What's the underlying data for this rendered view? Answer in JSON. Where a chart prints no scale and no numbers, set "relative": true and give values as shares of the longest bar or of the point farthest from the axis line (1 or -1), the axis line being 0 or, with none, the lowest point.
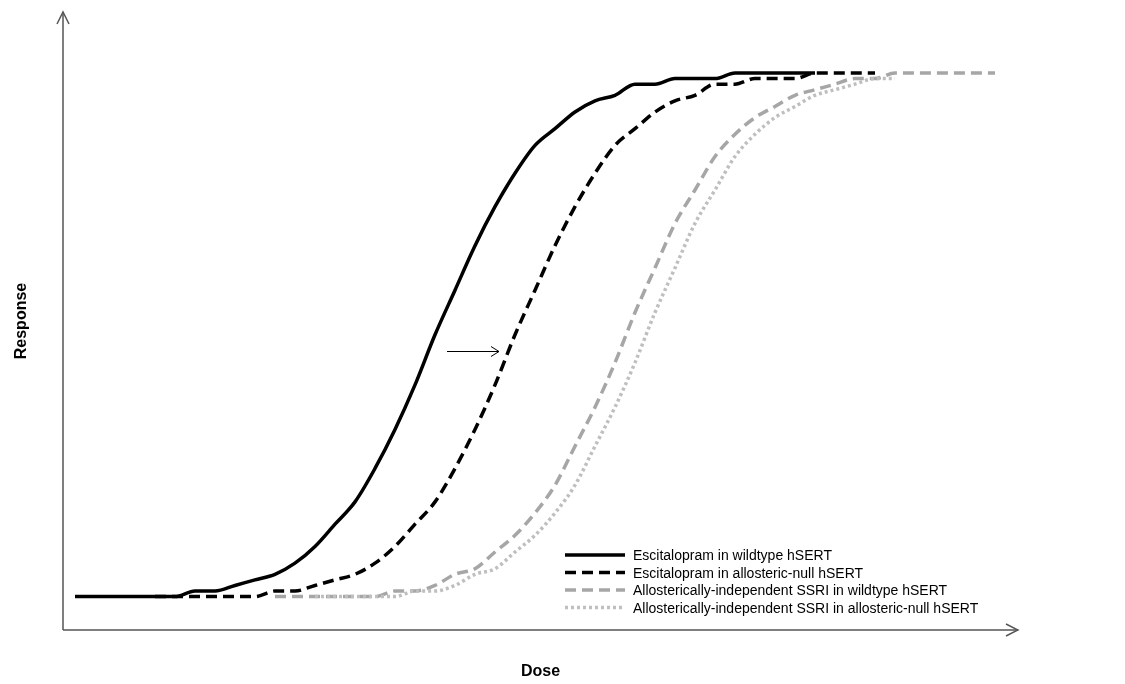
{
  "chart_data": {
    "type": "line",
    "relative": true,
    "xlabel": "Dose",
    "ylabel": "Response",
    "legend": "bottom right",
    "marker": "none",
    "categories": [
      null,
      null,
      null,
      null,
      null,
      null,
      null,
      null,
      null,
      null,
      null,
      null,
      null,
      null,
      null,
      null,
      null,
      null,
      null,
      null,
      null,
      null,
      null,
      null,
      null,
      null,
      null,
      null,
      null,
      null,
      null,
      null,
      null,
      null,
      null,
      null,
      null,
      null,
      null,
      null,
      null,
      null,
      null,
      null,
      null,
      null,
      null
    ],
    "series": [
      {
        "name": "Escitalopram in wildtype hSERT",
        "color": "#000000",
        "line_style": "solid",
        "values": [
          0.06,
          0.06,
          0.06,
          0.06,
          0.06,
          0.06,
          0.07,
          0.07,
          0.08,
          0.09,
          0.1,
          0.12,
          0.15,
          0.19,
          0.23,
          0.29,
          0.36,
          0.44,
          0.53,
          0.61,
          0.69,
          0.76,
          0.82,
          0.87,
          0.9,
          0.93,
          0.95,
          0.96,
          0.98,
          0.98,
          0.99,
          0.99,
          0.99,
          1.0,
          1.0,
          1.0,
          1.0,
          1.0,
          null,
          null,
          null,
          null,
          null,
          null,
          null,
          null,
          null
        ]
      },
      {
        "name": "Escitalopram in allosteric-null hSERT",
        "color": "#000000",
        "line_style": "dashed",
        "values": [
          null,
          null,
          null,
          null,
          0.06,
          0.06,
          0.06,
          0.06,
          0.06,
          0.06,
          0.07,
          0.07,
          0.08,
          0.09,
          0.1,
          0.12,
          0.15,
          0.19,
          0.23,
          0.29,
          0.36,
          0.44,
          0.53,
          0.61,
          0.69,
          0.76,
          0.82,
          0.87,
          0.9,
          0.93,
          0.95,
          0.96,
          0.98,
          0.98,
          0.99,
          0.99,
          0.99,
          1.0,
          1.0,
          1.0,
          1.0,
          null,
          null,
          null,
          null,
          null,
          null
        ]
      },
      {
        "name": "Allosterically-independent SSRI in wildtype hSERT",
        "color": "#a6a6a6",
        "line_style": "dashed",
        "values": [
          null,
          null,
          null,
          null,
          null,
          null,
          null,
          null,
          null,
          null,
          0.06,
          0.06,
          0.06,
          0.06,
          0.06,
          0.06,
          0.07,
          0.07,
          0.08,
          0.1,
          0.11,
          0.14,
          0.17,
          0.21,
          0.26,
          0.33,
          0.4,
          0.48,
          0.57,
          0.65,
          0.73,
          0.79,
          0.85,
          0.89,
          0.92,
          0.94,
          0.96,
          0.97,
          0.98,
          0.99,
          0.99,
          1.0,
          1.0,
          1.0,
          1.0,
          1.0,
          1.0
        ]
      },
      {
        "name": "Allosterically-independent SSRI in allosteric-null hSERT",
        "color": "#bfbfbf",
        "line_style": "dotted",
        "values": [
          null,
          null,
          null,
          null,
          null,
          null,
          null,
          null,
          null,
          null,
          null,
          null,
          0.06,
          0.06,
          0.06,
          0.06,
          0.06,
          0.07,
          0.07,
          0.08,
          0.1,
          0.11,
          0.14,
          0.17,
          0.21,
          0.26,
          0.33,
          0.4,
          0.48,
          0.57,
          0.65,
          0.73,
          0.79,
          0.85,
          0.89,
          0.92,
          0.94,
          0.96,
          0.97,
          0.98,
          0.99,
          0.99,
          null,
          null,
          null,
          null,
          null
        ]
      }
    ]
  }
}
